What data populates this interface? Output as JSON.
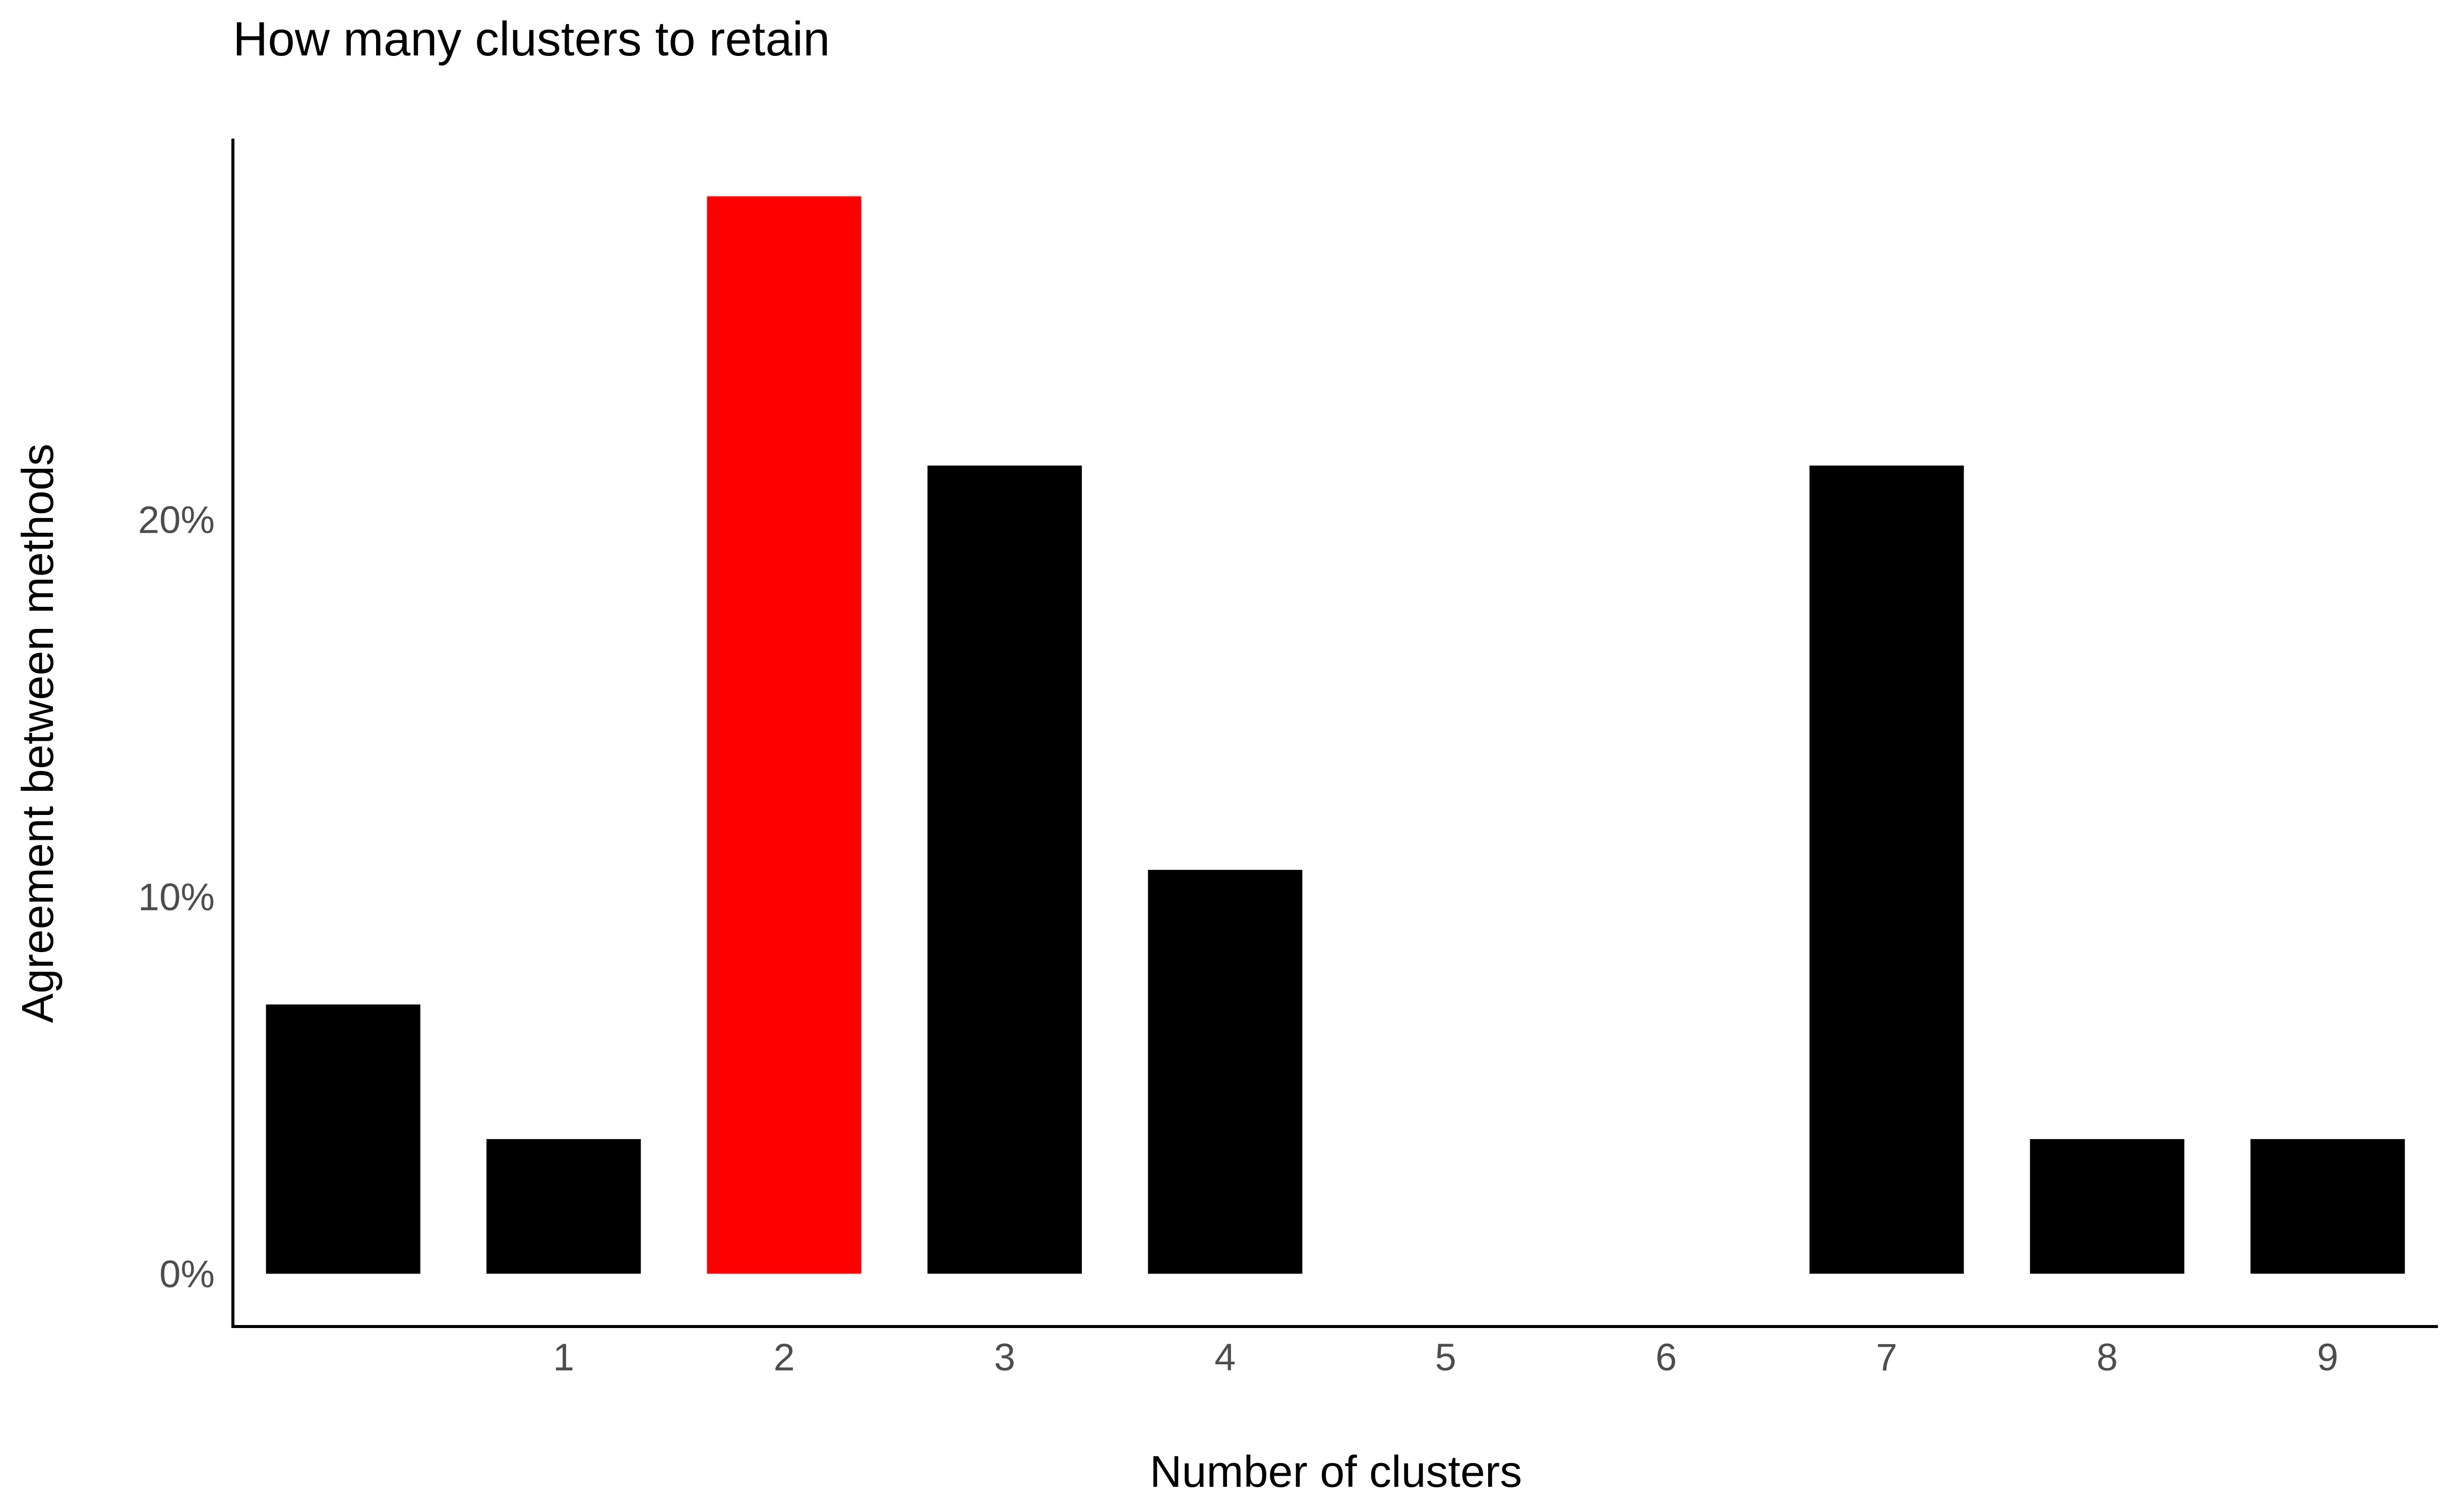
{
  "chart_data": {
    "type": "bar",
    "title": "How many clusters to retain",
    "xlabel": "Number of clusters",
    "ylabel": "Agreement between methods",
    "x": [
      0,
      1,
      2,
      3,
      4,
      5,
      6,
      7,
      8,
      9
    ],
    "values": [
      7.14,
      3.57,
      28.57,
      21.43,
      10.71,
      0,
      0,
      21.43,
      3.57,
      3.57
    ],
    "x_tick_labels": [
      "1",
      "2",
      "3",
      "4",
      "5",
      "6",
      "7",
      "8",
      "9"
    ],
    "x_tick_positions": [
      1,
      2,
      3,
      4,
      5,
      6,
      7,
      8,
      9
    ],
    "y_ticks": [
      0,
      10,
      20
    ],
    "y_tick_labels": [
      "0%",
      "10%",
      "20%"
    ],
    "ylim": [
      0,
      30
    ],
    "xlim": [
      -0.5,
      9.5
    ],
    "highlight_index": 2,
    "colors": {
      "bar": "#000000",
      "highlight": "#ff0000",
      "axis": "#000000",
      "tick_text": "#4d4d4d"
    },
    "grid": false,
    "legend": "none"
  }
}
